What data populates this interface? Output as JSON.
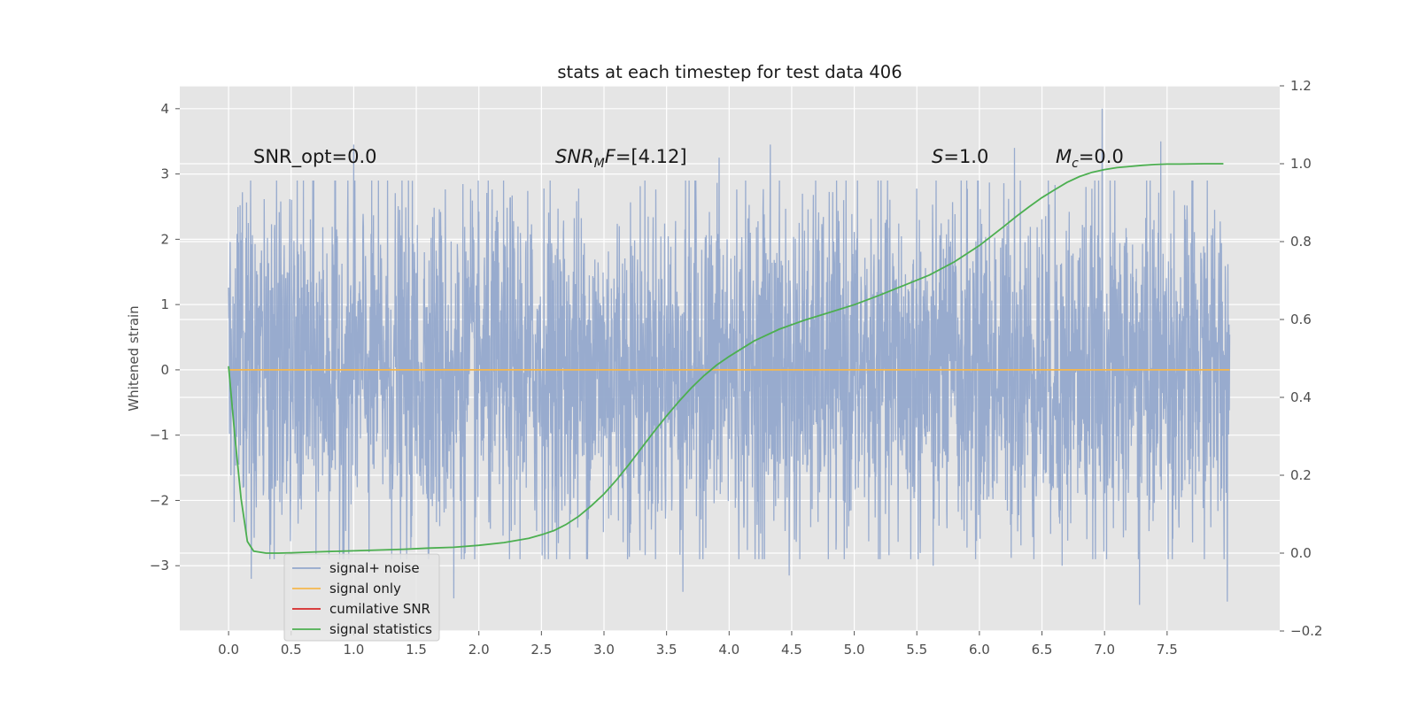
{
  "chart_data": {
    "type": "line",
    "title": "stats at each timestep for test data 406",
    "ylabel": "Whitened strain",
    "xlim": [
      -0.39,
      8.4
    ],
    "ylim": [
      -4.0,
      4.35
    ],
    "y2lim": [
      -0.2,
      1.2
    ],
    "xticks": [
      "0.0",
      "0.5",
      "1.0",
      "1.5",
      "2.0",
      "2.5",
      "3.0",
      "3.5",
      "4.0",
      "4.5",
      "5.0",
      "5.5",
      "6.0",
      "6.5",
      "7.0",
      "7.5"
    ],
    "yticks": [
      "4",
      "3",
      "2",
      "1",
      "0",
      "−1",
      "−2",
      "−3"
    ],
    "y2ticks": [
      "1.2",
      "1.0",
      "0.8",
      "0.6",
      "0.4",
      "0.2",
      "0.0",
      "−0.2"
    ],
    "grid": true,
    "legend_position": "lower-left",
    "annotations": [
      {
        "id": "snr-opt",
        "text": "SNR_opt=0.0"
      },
      {
        "id": "snr-mf",
        "text": "SNR_MF=[4.12]",
        "math_main": "SNR",
        "math_sub": "M",
        "math_rest": "F=[4.12]"
      },
      {
        "id": "s-value",
        "text": "S=1.0",
        "math_main": "S",
        "math_rest": "=1.0"
      },
      {
        "id": "mc-value",
        "text": "M_c=0.0",
        "math_main": "M",
        "math_sub": "c",
        "math_rest": "=0.0"
      }
    ],
    "series": [
      {
        "name": "signal+ noise",
        "color": "#94a8cc",
        "axis": "left",
        "description": "whitened noise time series",
        "x_range": [
          0.0,
          8.0
        ],
        "envelope": {
          "typical_low": -1.5,
          "typical_high": 2.0,
          "min": -3.6,
          "max": 4.0
        },
        "extremes": [
          {
            "x": 0.18,
            "y": -3.2
          },
          {
            "x": 1.0,
            "y": 3.45
          },
          {
            "x": 1.8,
            "y": -3.5
          },
          {
            "x": 3.63,
            "y": -3.4
          },
          {
            "x": 3.92,
            "y": 3.25
          },
          {
            "x": 4.33,
            "y": 3.45
          },
          {
            "x": 4.48,
            "y": -3.15
          },
          {
            "x": 5.63,
            "y": -3.0
          },
          {
            "x": 6.28,
            "y": 3.4
          },
          {
            "x": 6.66,
            "y": -3.0
          },
          {
            "x": 6.98,
            "y": 4.0
          },
          {
            "x": 7.28,
            "y": -3.6
          },
          {
            "x": 7.45,
            "y": 3.5
          },
          {
            "x": 7.98,
            "y": -3.55
          }
        ]
      },
      {
        "name": "signal only",
        "color": "#f5b74d",
        "axis": "left",
        "x": [
          0.0,
          8.0
        ],
        "y": [
          0.0,
          0.0
        ]
      },
      {
        "name": "cumilative SNR",
        "color": "#d62728",
        "axis": "left",
        "x": [],
        "y": []
      },
      {
        "name": "signal statistics",
        "color": "#4caf50",
        "axis": "right",
        "x": [
          0.0,
          0.05,
          0.1,
          0.15,
          0.2,
          0.3,
          0.4,
          0.5,
          0.6,
          0.8,
          1.0,
          1.2,
          1.4,
          1.6,
          1.8,
          2.0,
          2.2,
          2.4,
          2.5,
          2.6,
          2.7,
          2.8,
          2.9,
          3.0,
          3.1,
          3.2,
          3.3,
          3.4,
          3.5,
          3.6,
          3.7,
          3.8,
          3.9,
          4.0,
          4.2,
          4.4,
          4.6,
          4.8,
          5.0,
          5.2,
          5.4,
          5.6,
          5.8,
          6.0,
          6.1,
          6.2,
          6.3,
          6.4,
          6.5,
          6.6,
          6.7,
          6.8,
          6.9,
          7.0,
          7.1,
          7.2,
          7.3,
          7.4,
          7.5,
          7.6,
          7.8,
          7.95
        ],
        "y": [
          0.48,
          0.3,
          0.14,
          0.03,
          0.005,
          0.0,
          0.0,
          0.001,
          0.002,
          0.004,
          0.006,
          0.008,
          0.01,
          0.013,
          0.015,
          0.02,
          0.027,
          0.038,
          0.047,
          0.058,
          0.074,
          0.095,
          0.122,
          0.152,
          0.188,
          0.228,
          0.27,
          0.312,
          0.352,
          0.39,
          0.425,
          0.456,
          0.483,
          0.505,
          0.545,
          0.575,
          0.598,
          0.618,
          0.638,
          0.662,
          0.688,
          0.714,
          0.748,
          0.79,
          0.815,
          0.84,
          0.866,
          0.89,
          0.913,
          0.933,
          0.952,
          0.967,
          0.978,
          0.985,
          0.99,
          0.993,
          0.996,
          0.998,
          0.999,
          0.999,
          1.0,
          1.0
        ]
      }
    ]
  }
}
